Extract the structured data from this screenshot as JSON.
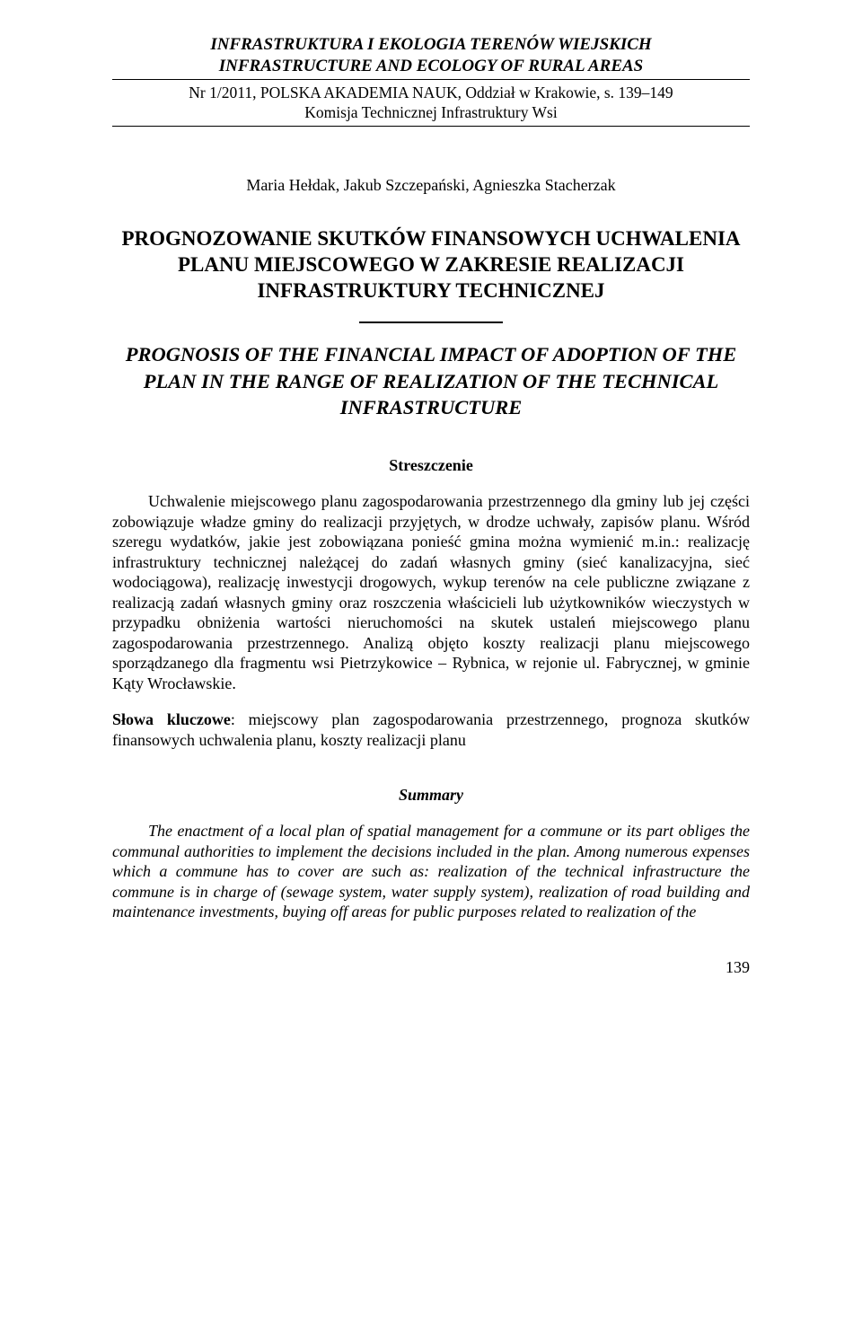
{
  "journal": {
    "title_line1": "INFRASTRUKTURA I EKOLOGIA TERENÓW WIEJSKICH",
    "title_line2": "INFRASTRUCTURE AND ECOLOGY OF RURAL AREAS",
    "issue_line1": "Nr 1/2011, POLSKA AKADEMIA NAUK, Oddział w Krakowie, s. 139–149",
    "issue_line2": "Komisja Technicznej Infrastruktury Wsi"
  },
  "authors": "Maria Hełdak, Jakub Szczepański, Agnieszka Stacherzak",
  "title_pl": "PROGNOZOWANIE SKUTKÓW FINANSOWYCH UCHWALENIA PLANU MIEJSCOWEGO W ZAKRESIE REALIZACJI INFRASTRUKTURY TECHNICZNEJ",
  "title_en": "PROGNOSIS OF THE FINANCIAL IMPACT OF ADOPTION OF THE PLAN IN THE RANGE OF REALIZATION OF THE TECHNICAL INFRASTRUCTURE",
  "abstract_heading": "Streszczenie",
  "abstract_body": "Uchwalenie miejscowego planu zagospodarowania przestrzennego dla gminy lub jej części zobowiązuje władze gminy do realizacji przyjętych, w drodze uchwały, zapisów planu. Wśród szeregu wydatków, jakie jest zobowiązana ponieść gmina można wymienić m.in.: realizację infrastruktury technicznej należącej do zadań własnych gminy (sieć kanalizacyjna, sieć wodociągowa), realizację inwestycji drogowych, wykup terenów na cele publiczne związane z realizacją zadań własnych gminy oraz roszczenia właścicieli lub użytkowników wieczystych w przypadku obniżenia wartości nieruchomości na skutek ustaleń miejscowego planu zagospodarowania przestrzennego. Analizą objęto koszty realizacji planu miejscowego sporządzanego dla fragmentu wsi Pietrzykowice – Rybnica, w rejonie ul. Fabrycznej, w gminie Kąty Wrocławskie.",
  "keywords_label": "Słowa kluczowe",
  "keywords_text": ": miejscowy plan zagospodarowania przestrzennego, prognoza skutków finansowych uchwalenia planu, koszty realizacji planu",
  "summary_heading": "Summary",
  "summary_body": "The enactment of a local plan of spatial management for a commune or its part obliges the communal authorities to implement the decisions included in the plan. Among numerous expenses which a commune has to cover are such as: realization of the technical infrastructure the commune is in charge of (sewage system, water supply system), realization of road building and maintenance investments, buying off areas for public purposes related to realization of the",
  "page_number": "139"
}
